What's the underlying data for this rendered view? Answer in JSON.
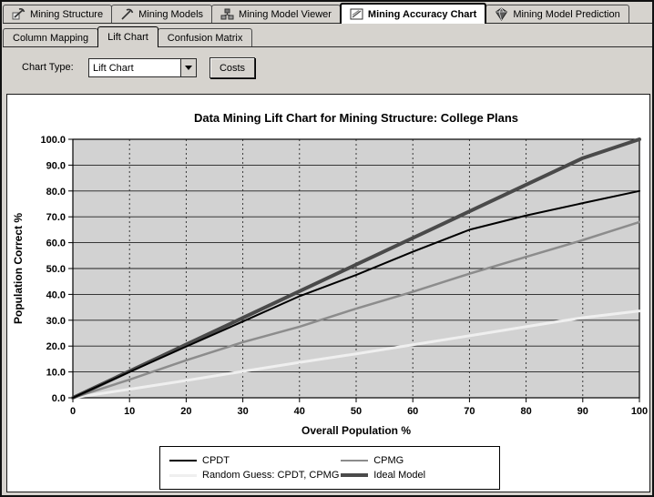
{
  "window": {
    "title": "Mining Accuracy Chart view",
    "bg_color": "#d6d3ce"
  },
  "top_tabs": {
    "active": "Mining Accuracy Chart",
    "items": [
      {
        "label": "Mining Structure",
        "icon": "mining-structure-icon"
      },
      {
        "label": "Mining Models",
        "icon": "mining-models-icon"
      },
      {
        "label": "Mining Model Viewer",
        "icon": "mining-model-viewer-icon"
      },
      {
        "label": "Mining Accuracy Chart",
        "icon": "mining-accuracy-chart-icon"
      },
      {
        "label": "Mining Model Prediction",
        "icon": "mining-model-prediction-icon"
      }
    ]
  },
  "sub_tabs": {
    "active": "Lift Chart",
    "items": [
      {
        "label": "Column Mapping"
      },
      {
        "label": "Lift Chart"
      },
      {
        "label": "Confusion Matrix"
      }
    ]
  },
  "toolbar": {
    "chart_type_label": "Chart Type:",
    "chart_type_value": "Lift Chart",
    "costs_button": "Costs"
  },
  "chart_data": {
    "type": "line",
    "title": "Data Mining Lift Chart for Mining Structure: College Plans",
    "xlabel": "Overall Population %",
    "ylabel": "Population Correct %",
    "xlim": [
      0,
      100
    ],
    "ylim": [
      0,
      100
    ],
    "x_tick_labels": [
      "0",
      "10",
      "20",
      "30",
      "40",
      "50",
      "60",
      "70",
      "80",
      "90",
      "100"
    ],
    "y_tick_labels": [
      "0.0",
      "10.0",
      "20.0",
      "30.0",
      "40.0",
      "50.0",
      "60.0",
      "70.0",
      "80.0",
      "90.0",
      "100.0"
    ],
    "grid": {
      "horizontal": "solid",
      "vertical": "dashed",
      "plot_bg": "#d2d2d2"
    },
    "x": [
      0,
      10,
      20,
      30,
      40,
      50,
      60,
      70,
      80,
      90,
      100
    ],
    "series": [
      {
        "name": "CPDT",
        "color": "#000000",
        "width": 2,
        "values": [
          0,
          10,
          19.8,
          29.5,
          39.3,
          47.5,
          56.5,
          65,
          70.5,
          75.3,
          80
        ]
      },
      {
        "name": "CPMG",
        "color": "#8c8c8c",
        "width": 2.5,
        "values": [
          0,
          7,
          14.5,
          21.5,
          27.5,
          34.5,
          41,
          48,
          54.5,
          61,
          68
        ]
      },
      {
        "name": "Random Guess: CPDT, CPMG",
        "color": "#efefef",
        "width": 3,
        "values": [
          0,
          3.3,
          6.7,
          10.2,
          13.7,
          17,
          20.5,
          24,
          27.5,
          31,
          33.6
        ]
      },
      {
        "name": "Ideal Model",
        "color": "#4a4a4a",
        "width": 4,
        "values": [
          0,
          10.3,
          20.6,
          30.9,
          41.2,
          51.5,
          61.8,
          72.1,
          82.4,
          92.7,
          100
        ]
      }
    ],
    "legend": {
      "position": "bottom",
      "columns": 2,
      "order": [
        "CPDT",
        "CPMG",
        "Random Guess: CPDT, CPMG",
        "Ideal Model"
      ]
    }
  }
}
